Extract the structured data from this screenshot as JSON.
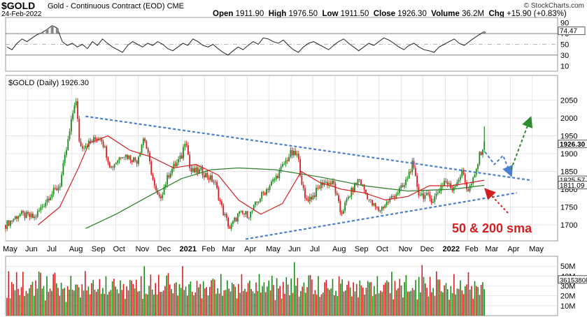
{
  "header": {
    "symbol": "$GOLD",
    "name": "Gold - Continuous Contract (EOD)",
    "exchange": "CME",
    "date": "24-Feb-2022",
    "open_label": "Open",
    "open": "1911.90",
    "high_label": "High",
    "high": "1976.50",
    "low_label": "Low",
    "low": "1911.50",
    "close_label": "Close",
    "close": "1926.30",
    "volume_label": "Volume",
    "volume": "36.2M",
    "chg_label": "Chg",
    "chg": "+15.90 (+0.83%)",
    "credit": "© StockCharts.com"
  },
  "colors": {
    "up": "#1a8a1a",
    "down": "#d42020",
    "sma50": "#d42020",
    "sma200": "#2e7d2e",
    "trend": "#4a7fd0",
    "annotation": "#d42020",
    "projection_blue": "#4a7fd0",
    "projection_green": "#2e8b2e",
    "grid": "#dcdcdc",
    "rsi_fill": "#888888"
  },
  "chart_data": [
    {
      "type": "line",
      "panel": "rsi",
      "y_ticks": [
        "90",
        "70",
        "50",
        "30",
        "10"
      ],
      "last_value_label": "74.47",
      "ylim": [
        0,
        100
      ],
      "reference_lines": [
        70,
        30
      ],
      "midline": 50,
      "values": [
        45,
        40,
        52,
        60,
        55,
        62,
        68,
        72,
        78,
        85,
        80,
        55,
        48,
        52,
        45,
        50,
        42,
        55,
        48,
        60,
        52,
        45,
        40,
        35,
        48,
        55,
        50,
        45,
        52,
        48,
        55,
        50,
        42,
        38,
        45,
        52,
        48,
        60,
        55,
        48,
        45,
        50,
        42,
        35,
        30,
        38,
        45,
        40,
        48,
        55,
        50,
        62,
        60,
        55,
        52,
        58,
        48,
        40,
        35,
        45,
        52,
        55,
        50,
        45,
        40,
        48,
        55,
        60,
        52,
        45,
        38,
        45,
        52,
        48,
        55,
        62,
        58,
        52,
        45,
        40,
        48,
        52,
        45,
        40,
        38,
        35,
        45,
        50,
        55,
        60,
        52,
        48,
        55,
        62,
        68,
        74
      ]
    },
    {
      "type": "candlestick",
      "panel": "price",
      "title": "$GOLD (Daily) 1926.30",
      "x_ticks": [
        "May",
        "Jun",
        "Jul",
        "Aug",
        "Sep",
        "Oct",
        "Nov",
        "Dec",
        "2021",
        "Feb",
        "Mar",
        "Apr",
        "May",
        "Jun",
        "Jul",
        "Aug",
        "Sep",
        "Oct",
        "Nov",
        "Dec",
        "2022",
        "Feb",
        "Mar",
        "Apr",
        "May"
      ],
      "y_ticks": [
        "2050",
        "2000",
        "1950",
        "1900",
        "1850",
        "1800",
        "1750",
        "1700"
      ],
      "ylim": [
        1655,
        2120
      ],
      "price_labels": [
        {
          "value": 1926.3,
          "text": "1926.30"
        },
        {
          "value": 1825.57,
          "text": "1825.57"
        },
        {
          "value": 1811.09,
          "text": "1811.09"
        }
      ],
      "close_path": [
        [
          "2020-05-01",
          1700
        ],
        [
          "2020-05-20",
          1730
        ],
        [
          "2020-06-10",
          1720
        ],
        [
          "2020-06-30",
          1780
        ],
        [
          "2020-07-15",
          1810
        ],
        [
          "2020-07-28",
          1950
        ],
        [
          "2020-08-06",
          2060
        ],
        [
          "2020-08-12",
          1920
        ],
        [
          "2020-08-25",
          1930
        ],
        [
          "2020-09-10",
          1950
        ],
        [
          "2020-09-24",
          1860
        ],
        [
          "2020-10-10",
          1900
        ],
        [
          "2020-10-30",
          1880
        ],
        [
          "2020-11-09",
          1950
        ],
        [
          "2020-11-24",
          1800
        ],
        [
          "2020-11-30",
          1770
        ],
        [
          "2020-12-15",
          1850
        ],
        [
          "2020-12-31",
          1890
        ],
        [
          "2021-01-06",
          1950
        ],
        [
          "2021-01-12",
          1850
        ],
        [
          "2021-01-28",
          1850
        ],
        [
          "2021-02-15",
          1820
        ],
        [
          "2021-02-26",
          1740
        ],
        [
          "2021-03-08",
          1690
        ],
        [
          "2021-03-20",
          1730
        ],
        [
          "2021-04-05",
          1730
        ],
        [
          "2021-04-20",
          1780
        ],
        [
          "2021-05-10",
          1830
        ],
        [
          "2021-05-31",
          1900
        ],
        [
          "2021-06-10",
          1895
        ],
        [
          "2021-06-20",
          1770
        ],
        [
          "2021-07-01",
          1780
        ],
        [
          "2021-07-15",
          1820
        ],
        [
          "2021-07-30",
          1815
        ],
        [
          "2021-08-09",
          1730
        ],
        [
          "2021-08-20",
          1780
        ],
        [
          "2021-09-03",
          1830
        ],
        [
          "2021-09-20",
          1760
        ],
        [
          "2021-10-01",
          1740
        ],
        [
          "2021-10-20",
          1780
        ],
        [
          "2021-11-05",
          1810
        ],
        [
          "2021-11-16",
          1870
        ],
        [
          "2021-11-25",
          1790
        ],
        [
          "2021-12-15",
          1770
        ],
        [
          "2021-12-31",
          1825
        ],
        [
          "2022-01-10",
          1800
        ],
        [
          "2022-01-25",
          1850
        ],
        [
          "2022-02-01",
          1795
        ],
        [
          "2022-02-10",
          1830
        ],
        [
          "2022-02-18",
          1900
        ],
        [
          "2022-02-24",
          1926
        ]
      ],
      "sma50_path": [
        [
          "2020-06-15",
          1700
        ],
        [
          "2020-07-15",
          1750
        ],
        [
          "2020-08-10",
          1860
        ],
        [
          "2020-08-25",
          1930
        ],
        [
          "2020-09-20",
          1950
        ],
        [
          "2020-10-20",
          1910
        ],
        [
          "2020-11-20",
          1890
        ],
        [
          "2020-12-20",
          1860
        ],
        [
          "2021-01-20",
          1870
        ],
        [
          "2021-02-20",
          1840
        ],
        [
          "2021-03-20",
          1770
        ],
        [
          "2021-04-20",
          1730
        ],
        [
          "2021-05-20",
          1760
        ],
        [
          "2021-06-15",
          1850
        ],
        [
          "2021-07-10",
          1820
        ],
        [
          "2021-08-10",
          1800
        ],
        [
          "2021-09-10",
          1790
        ],
        [
          "2021-10-10",
          1770
        ],
        [
          "2021-11-10",
          1780
        ],
        [
          "2021-12-10",
          1810
        ],
        [
          "2022-01-10",
          1810
        ],
        [
          "2022-02-24",
          1825.57
        ]
      ],
      "sma200_path": [
        [
          "2020-08-20",
          1690
        ],
        [
          "2020-10-01",
          1730
        ],
        [
          "2020-11-15",
          1780
        ],
        [
          "2020-12-31",
          1830
        ],
        [
          "2021-02-10",
          1855
        ],
        [
          "2021-03-20",
          1860
        ],
        [
          "2021-05-10",
          1855
        ],
        [
          "2021-07-10",
          1835
        ],
        [
          "2021-09-10",
          1810
        ],
        [
          "2021-11-10",
          1795
        ],
        [
          "2022-01-10",
          1800
        ],
        [
          "2022-02-24",
          1811.09
        ]
      ],
      "trendlines": [
        {
          "name": "descending-resistance",
          "from": [
            "2020-08-20",
            2005
          ],
          "to": [
            "2022-05-01",
            1825
          ]
        },
        {
          "name": "ascending-support",
          "from": [
            "2021-03-30",
            1660
          ],
          "to": [
            "2022-04-10",
            1790
          ]
        }
      ],
      "projections": [
        {
          "name": "blue-zigzag",
          "points": [
            [
              "2022-02-25",
              1905
            ],
            [
              "2022-03-10",
              1870
            ],
            [
              "2022-03-22",
              1895
            ],
            [
              "2022-04-01",
              1845
            ]
          ]
        },
        {
          "name": "green-arrow",
          "points": [
            [
              "2022-04-02",
              1855
            ],
            [
              "2022-04-28",
              1995
            ]
          ]
        }
      ],
      "annotation": {
        "text": "50 & 200 sma",
        "points_to": [
          "2022-02-24",
          1795
        ]
      }
    },
    {
      "type": "bar",
      "panel": "volume",
      "y_ticks": [
        "50M",
        "40M",
        "30M",
        "20M",
        "10M"
      ],
      "last_value_label": "36153808",
      "ylim": [
        0,
        60000000
      ],
      "values": [
        30,
        45,
        25,
        35,
        40,
        28,
        50,
        32,
        22,
        38,
        45,
        30,
        25,
        35,
        28,
        42,
        36,
        24,
        40,
        30,
        55,
        45,
        38,
        30,
        25,
        40,
        35,
        28,
        32,
        45,
        50,
        38,
        30,
        26,
        34,
        40,
        28,
        22,
        30,
        36,
        42,
        32,
        28,
        35,
        38,
        30,
        25,
        32,
        40,
        45,
        38,
        30,
        28,
        35,
        42,
        30,
        26,
        34,
        38,
        32,
        28,
        36,
        40,
        30,
        25,
        32,
        38,
        42,
        35,
        28,
        30,
        36,
        40,
        32,
        26,
        30,
        34,
        38,
        42,
        36
      ]
    }
  ]
}
